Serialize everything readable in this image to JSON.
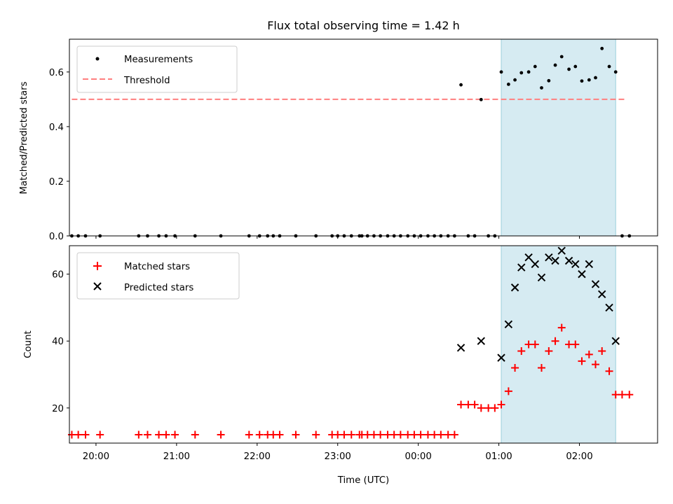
{
  "chart_data": [
    {
      "type": "scatter",
      "title": "Flux total observing time = 1.42 h",
      "xlabel": "",
      "ylabel": "Matched/Predicted stars",
      "ylim": [
        0,
        0.72
      ],
      "yticks": [
        "0.0",
        "0.2",
        "0.4",
        "0.6"
      ],
      "xlim_hours": [
        -4.33,
        2.97
      ],
      "shaded_span_hours": [
        1.03,
        2.45
      ],
      "shaded_color": "#add8e6",
      "legend": {
        "position": "top-left",
        "entries": [
          "Measurements",
          "Threshold"
        ]
      },
      "threshold": {
        "name": "Threshold",
        "value": 0.5,
        "x_range_hours": [
          -4.3,
          2.57
        ],
        "color": "#ff7f7f"
      },
      "series": [
        {
          "name": "Measurements",
          "color": "#000000",
          "points": [
            [
              -4.3,
              0
            ],
            [
              -4.22,
              0
            ],
            [
              -4.13,
              0
            ],
            [
              -3.95,
              0
            ],
            [
              -3.47,
              0
            ],
            [
              -3.36,
              0
            ],
            [
              -3.22,
              0
            ],
            [
              -3.13,
              0
            ],
            [
              -3.02,
              0
            ],
            [
              -2.77,
              0
            ],
            [
              -2.45,
              0
            ],
            [
              -2.1,
              0
            ],
            [
              -1.97,
              0
            ],
            [
              -1.87,
              0
            ],
            [
              -1.8,
              0
            ],
            [
              -1.72,
              0
            ],
            [
              -1.52,
              0
            ],
            [
              -1.27,
              0
            ],
            [
              -1.07,
              0
            ],
            [
              -1.0,
              0
            ],
            [
              -0.92,
              0
            ],
            [
              -0.83,
              0
            ],
            [
              -0.73,
              0
            ],
            [
              -0.7,
              0
            ],
            [
              -0.63,
              0
            ],
            [
              -0.55,
              0
            ],
            [
              -0.47,
              0
            ],
            [
              -0.38,
              0
            ],
            [
              -0.3,
              0
            ],
            [
              -0.22,
              0
            ],
            [
              -0.13,
              0
            ],
            [
              -0.05,
              0
            ],
            [
              0.03,
              0
            ],
            [
              0.12,
              0
            ],
            [
              0.2,
              0
            ],
            [
              0.28,
              0
            ],
            [
              0.37,
              0
            ],
            [
              0.45,
              0
            ],
            [
              0.53,
              0.553
            ],
            [
              0.62,
              0
            ],
            [
              0.7,
              0
            ],
            [
              0.78,
              0.499
            ],
            [
              0.87,
              0
            ],
            [
              0.95,
              0
            ],
            [
              1.03,
              0.6
            ],
            [
              1.12,
              0.555
            ],
            [
              1.2,
              0.571
            ],
            [
              1.28,
              0.597
            ],
            [
              1.37,
              0.6
            ],
            [
              1.45,
              0.62
            ],
            [
              1.53,
              0.542
            ],
            [
              1.62,
              0.568
            ],
            [
              1.7,
              0.625
            ],
            [
              1.78,
              0.656
            ],
            [
              1.87,
              0.61
            ],
            [
              1.95,
              0.62
            ],
            [
              2.03,
              0.567
            ],
            [
              2.12,
              0.571
            ],
            [
              2.2,
              0.579
            ],
            [
              2.28,
              0.686
            ],
            [
              2.37,
              0.62
            ],
            [
              2.45,
              0.6
            ],
            [
              2.53,
              0
            ],
            [
              2.62,
              0
            ]
          ]
        }
      ]
    },
    {
      "type": "scatter",
      "title": "",
      "xlabel": "Time (UTC)",
      "ylabel": "Count",
      "ylim": [
        9.5,
        68.5
      ],
      "yticks": [
        "20",
        "40",
        "60"
      ],
      "xlim_hours": [
        -4.33,
        2.97
      ],
      "xticks": [
        "20:00",
        "21:00",
        "22:00",
        "23:00",
        "00:00",
        "01:00",
        "02:00"
      ],
      "shaded_span_hours": [
        1.03,
        2.45
      ],
      "shaded_color": "#add8e6",
      "legend": {
        "position": "top-left",
        "entries": [
          "Matched stars",
          "Predicted stars"
        ]
      },
      "series": [
        {
          "name": "Matched stars",
          "marker": "plus",
          "color": "#ff0000",
          "points": [
            [
              -4.3,
              12
            ],
            [
              -4.22,
              12
            ],
            [
              -4.13,
              12
            ],
            [
              -3.95,
              12
            ],
            [
              -3.47,
              12
            ],
            [
              -3.36,
              12
            ],
            [
              -3.22,
              12
            ],
            [
              -3.13,
              12
            ],
            [
              -3.02,
              12
            ],
            [
              -2.77,
              12
            ],
            [
              -2.45,
              12
            ],
            [
              -2.1,
              12
            ],
            [
              -1.97,
              12
            ],
            [
              -1.87,
              12
            ],
            [
              -1.8,
              12
            ],
            [
              -1.72,
              12
            ],
            [
              -1.52,
              12
            ],
            [
              -1.27,
              12
            ],
            [
              -1.07,
              12
            ],
            [
              -1.0,
              12
            ],
            [
              -0.92,
              12
            ],
            [
              -0.83,
              12
            ],
            [
              -0.73,
              12
            ],
            [
              -0.7,
              12
            ],
            [
              -0.63,
              12
            ],
            [
              -0.55,
              12
            ],
            [
              -0.47,
              12
            ],
            [
              -0.38,
              12
            ],
            [
              -0.3,
              12
            ],
            [
              -0.22,
              12
            ],
            [
              -0.13,
              12
            ],
            [
              -0.05,
              12
            ],
            [
              0.03,
              12
            ],
            [
              0.12,
              12
            ],
            [
              0.2,
              12
            ],
            [
              0.28,
              12
            ],
            [
              0.37,
              12
            ],
            [
              0.45,
              12
            ],
            [
              0.53,
              21
            ],
            [
              0.62,
              21
            ],
            [
              0.7,
              21
            ],
            [
              0.78,
              20
            ],
            [
              0.87,
              20
            ],
            [
              0.95,
              20
            ],
            [
              1.03,
              21
            ],
            [
              1.12,
              25
            ],
            [
              1.2,
              32
            ],
            [
              1.28,
              37
            ],
            [
              1.37,
              39
            ],
            [
              1.45,
              39
            ],
            [
              1.53,
              32
            ],
            [
              1.62,
              37
            ],
            [
              1.7,
              40
            ],
            [
              1.78,
              44
            ],
            [
              1.87,
              39
            ],
            [
              1.95,
              39
            ],
            [
              2.03,
              34
            ],
            [
              2.12,
              36
            ],
            [
              2.2,
              33
            ],
            [
              2.28,
              37
            ],
            [
              2.37,
              31
            ],
            [
              2.45,
              24
            ],
            [
              2.53,
              24
            ],
            [
              2.62,
              24
            ]
          ]
        },
        {
          "name": "Predicted stars",
          "marker": "x",
          "color": "#000000",
          "points": [
            [
              0.53,
              38
            ],
            [
              0.78,
              40
            ],
            [
              1.03,
              35
            ],
            [
              1.12,
              45
            ],
            [
              1.2,
              56
            ],
            [
              1.28,
              62
            ],
            [
              1.37,
              65
            ],
            [
              1.45,
              63
            ],
            [
              1.53,
              59
            ],
            [
              1.62,
              65
            ],
            [
              1.7,
              64
            ],
            [
              1.78,
              67
            ],
            [
              1.87,
              64
            ],
            [
              1.95,
              63
            ],
            [
              2.03,
              60
            ],
            [
              2.12,
              63
            ],
            [
              2.2,
              57
            ],
            [
              2.28,
              54
            ],
            [
              2.37,
              50
            ],
            [
              2.45,
              40
            ]
          ]
        }
      ]
    }
  ]
}
